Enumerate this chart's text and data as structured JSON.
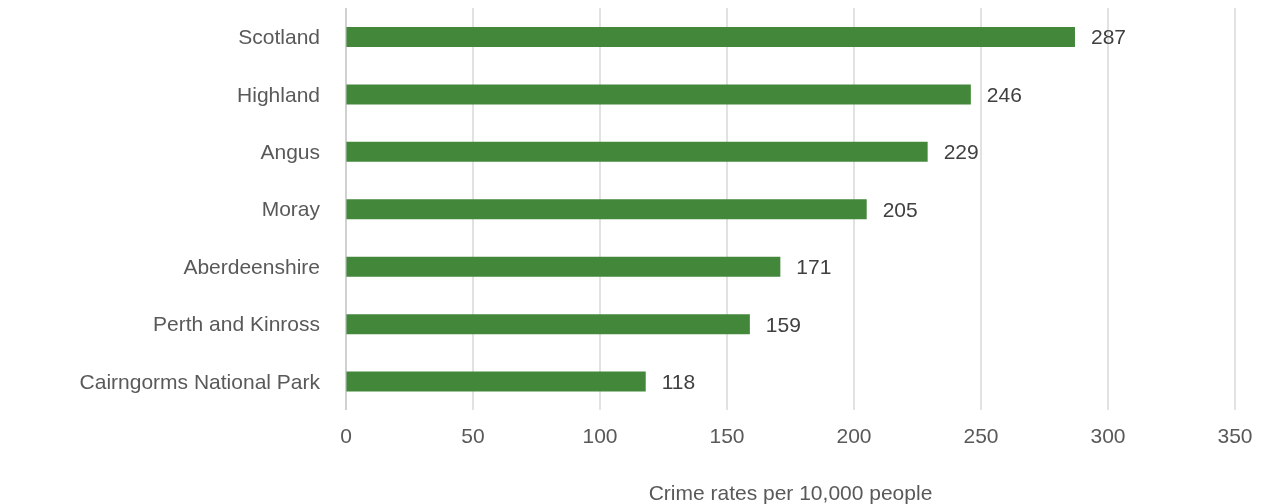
{
  "chart_data": {
    "type": "bar",
    "orientation": "horizontal",
    "xlabel": "Crime rates per 10,000 people",
    "categories": [
      "Scotland",
      "Highland",
      "Angus",
      "Moray",
      "Aberdeenshire",
      "Perth and Kinross",
      "Cairngorms National Park"
    ],
    "values": [
      287,
      246,
      229,
      205,
      171,
      159,
      118
    ],
    "color": "#43873a",
    "data_labels": true,
    "xlim": [
      0,
      350
    ],
    "xticks": [
      0,
      50,
      100,
      150,
      200,
      250,
      300,
      350
    ],
    "grid": "x",
    "legend": false
  }
}
